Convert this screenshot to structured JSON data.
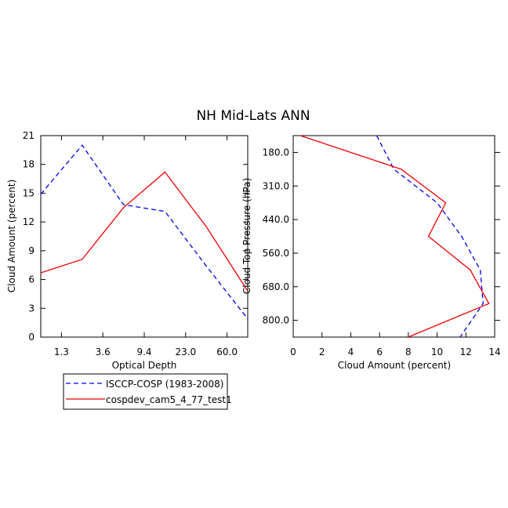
{
  "title": "NH Mid-Lats ANN",
  "chart_data": [
    {
      "type": "line",
      "xlabel": "Optical Depth",
      "ylabel": "Cloud Amount (percent)",
      "x_tick_labels": [
        "1.3",
        "3.6",
        "9.4",
        "23.0",
        "60.0"
      ],
      "x_bins": [
        "0.3-1.3",
        "1.3-3.6",
        "3.6-9.4",
        "9.4-23.0",
        "23.0-60.0",
        "60.0-379"
      ],
      "y_ticks": [
        0,
        3,
        6,
        9,
        12,
        15,
        18,
        21
      ],
      "ylim": [
        0,
        21
      ],
      "series": [
        {
          "name": "ISCCP-COSP (1983-2008)",
          "style": "dashed",
          "color": "#0000ee",
          "values": [
            14.9,
            20.0,
            13.8,
            13.1,
            7.4,
            1.9
          ]
        },
        {
          "name": "cospdev_cam5_4_77_test1",
          "style": "solid",
          "color": "#ee0000",
          "values": [
            6.7,
            8.1,
            13.5,
            17.2,
            11.5,
            4.8
          ]
        }
      ],
      "legend": "below"
    },
    {
      "type": "line",
      "orientation": "horizontal",
      "xlabel": "Cloud Amount (percent)",
      "ylabel": "Cloud Top Pressure (hPa)",
      "x_ticks": [
        0,
        2,
        4,
        6,
        8,
        10,
        12,
        14
      ],
      "xlim": [
        0,
        14
      ],
      "y_tick_labels": [
        "180.0",
        "310.0",
        "440.0",
        "560.0",
        "680.0",
        "800.0"
      ],
      "y_bins": [
        "50-180",
        "180-310",
        "310-440",
        "440-560",
        "560-680",
        "680-800",
        "800-1000"
      ],
      "series": [
        {
          "name": "ISCCP-COSP (1983-2008)",
          "style": "dashed",
          "color": "#0000ee",
          "values": [
            5.8,
            7.0,
            10.0,
            11.7,
            13.0,
            13.2,
            11.6
          ]
        },
        {
          "name": "cospdev_cam5_4_77_test1",
          "style": "solid",
          "color": "#ee0000",
          "values": [
            0.5,
            7.5,
            10.6,
            9.4,
            12.3,
            13.6,
            8.0
          ]
        }
      ]
    }
  ]
}
